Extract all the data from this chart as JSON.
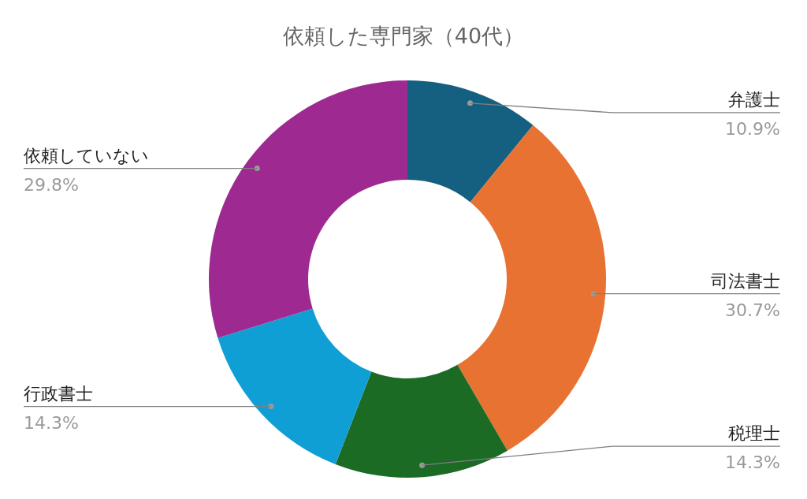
{
  "chart_data": {
    "type": "donut",
    "title": "依頼した専門家（40代）",
    "categories": [
      "弁護士",
      "司法書士",
      "税理士",
      "行政書士",
      "依頼していない"
    ],
    "values": [
      10.9,
      30.7,
      14.3,
      14.3,
      29.8
    ],
    "value_labels": [
      "10.9%",
      "30.7%",
      "14.3%",
      "14.3%",
      "29.8%"
    ],
    "colors": [
      "#155f80",
      "#e87232",
      "#1b6b25",
      "#109fd5",
      "#9e2a91"
    ],
    "legend": false
  }
}
